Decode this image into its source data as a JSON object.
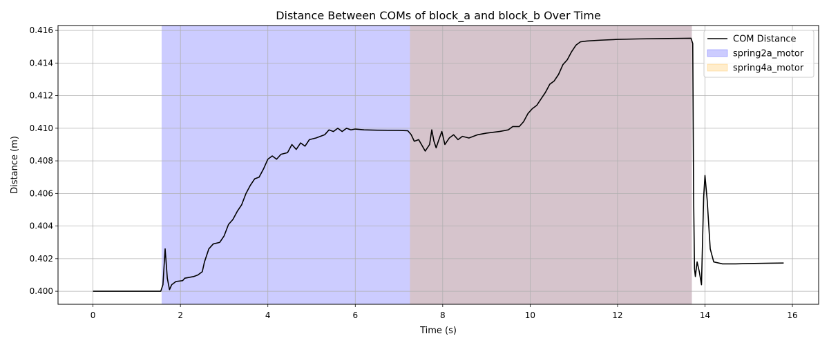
{
  "chart_data": {
    "type": "line",
    "title": "Distance Between COMs of block_a and block_b Over Time",
    "xlabel": "Time (s)",
    "ylabel": "Distance (m)",
    "xlim": [
      -0.8,
      16.6
    ],
    "ylim": [
      0.3992,
      0.4163
    ],
    "xticks": [
      0,
      2,
      4,
      6,
      8,
      10,
      12,
      14,
      16
    ],
    "xtick_labels": [
      "0",
      "2",
      "4",
      "6",
      "8",
      "10",
      "12",
      "14",
      "16"
    ],
    "yticks": [
      0.4,
      0.402,
      0.404,
      0.406,
      0.408,
      0.41,
      0.412,
      0.414,
      0.416
    ],
    "ytick_labels": [
      "0.400",
      "0.402",
      "0.404",
      "0.406",
      "0.408",
      "0.410",
      "0.412",
      "0.414",
      "0.416"
    ],
    "grid": true,
    "legend_position": "top-right",
    "spans": [
      {
        "name": "spring2a_motor",
        "x_start": 1.57,
        "x_end": 13.7,
        "color": "#0000ff",
        "alpha": 0.2
      },
      {
        "name": "spring4a_motor",
        "x_start": 7.25,
        "x_end": 13.7,
        "color": "#ffa500",
        "alpha": 0.2
      }
    ],
    "series": [
      {
        "name": "COM Distance",
        "color": "#000000",
        "points": [
          [
            0.0,
            0.4
          ],
          [
            1.0,
            0.4
          ],
          [
            1.55,
            0.4
          ],
          [
            1.6,
            0.4004
          ],
          [
            1.65,
            0.4026
          ],
          [
            1.7,
            0.4008
          ],
          [
            1.75,
            0.4001
          ],
          [
            1.8,
            0.4004
          ],
          [
            1.9,
            0.4006
          ],
          [
            2.05,
            0.40065
          ],
          [
            2.1,
            0.4008
          ],
          [
            2.3,
            0.4009
          ],
          [
            2.4,
            0.401
          ],
          [
            2.5,
            0.4012
          ],
          [
            2.55,
            0.4018
          ],
          [
            2.65,
            0.4026
          ],
          [
            2.75,
            0.4029
          ],
          [
            2.9,
            0.403
          ],
          [
            3.0,
            0.4034
          ],
          [
            3.1,
            0.4041
          ],
          [
            3.2,
            0.4044
          ],
          [
            3.3,
            0.4049
          ],
          [
            3.4,
            0.4053
          ],
          [
            3.5,
            0.406
          ],
          [
            3.6,
            0.4065
          ],
          [
            3.7,
            0.4069
          ],
          [
            3.8,
            0.407
          ],
          [
            3.9,
            0.4075
          ],
          [
            4.0,
            0.4081
          ],
          [
            4.1,
            0.4083
          ],
          [
            4.2,
            0.4081
          ],
          [
            4.3,
            0.4084
          ],
          [
            4.45,
            0.4085
          ],
          [
            4.55,
            0.409
          ],
          [
            4.65,
            0.4087
          ],
          [
            4.75,
            0.4091
          ],
          [
            4.85,
            0.4089
          ],
          [
            4.95,
            0.4093
          ],
          [
            5.1,
            0.4094
          ],
          [
            5.2,
            0.4095
          ],
          [
            5.3,
            0.4096
          ],
          [
            5.4,
            0.4099
          ],
          [
            5.5,
            0.4098
          ],
          [
            5.6,
            0.41
          ],
          [
            5.7,
            0.4098
          ],
          [
            5.8,
            0.41
          ],
          [
            5.9,
            0.4099
          ],
          [
            6.0,
            0.40995
          ],
          [
            6.2,
            0.4099
          ],
          [
            6.5,
            0.40988
          ],
          [
            7.0,
            0.40987
          ],
          [
            7.2,
            0.40985
          ],
          [
            7.28,
            0.4096
          ],
          [
            7.35,
            0.4092
          ],
          [
            7.45,
            0.4093
          ],
          [
            7.6,
            0.4086
          ],
          [
            7.7,
            0.409
          ],
          [
            7.75,
            0.4099
          ],
          [
            7.8,
            0.4092
          ],
          [
            7.85,
            0.4088
          ],
          [
            7.9,
            0.4092
          ],
          [
            7.98,
            0.4098
          ],
          [
            8.05,
            0.409
          ],
          [
            8.15,
            0.4094
          ],
          [
            8.25,
            0.4096
          ],
          [
            8.35,
            0.4093
          ],
          [
            8.45,
            0.4095
          ],
          [
            8.6,
            0.4094
          ],
          [
            8.8,
            0.4096
          ],
          [
            9.0,
            0.4097
          ],
          [
            9.3,
            0.4098
          ],
          [
            9.5,
            0.4099
          ],
          [
            9.6,
            0.4101
          ],
          [
            9.75,
            0.4101
          ],
          [
            9.85,
            0.4104
          ],
          [
            9.95,
            0.4109
          ],
          [
            10.05,
            0.4112
          ],
          [
            10.15,
            0.4114
          ],
          [
            10.25,
            0.4118
          ],
          [
            10.35,
            0.4122
          ],
          [
            10.45,
            0.4127
          ],
          [
            10.55,
            0.4129
          ],
          [
            10.65,
            0.4133
          ],
          [
            10.75,
            0.4139
          ],
          [
            10.85,
            0.4142
          ],
          [
            10.95,
            0.4147
          ],
          [
            11.05,
            0.4151
          ],
          [
            11.15,
            0.4153
          ],
          [
            11.3,
            0.41535
          ],
          [
            11.6,
            0.4154
          ],
          [
            12.0,
            0.41545
          ],
          [
            12.5,
            0.41548
          ],
          [
            13.0,
            0.4155
          ],
          [
            13.68,
            0.41552
          ],
          [
            13.72,
            0.4152
          ],
          [
            13.74,
            0.4058
          ],
          [
            13.76,
            0.4014
          ],
          [
            13.78,
            0.4009
          ],
          [
            13.82,
            0.4018
          ],
          [
            13.87,
            0.4012
          ],
          [
            13.92,
            0.4004
          ],
          [
            13.97,
            0.4058
          ],
          [
            14.0,
            0.4071
          ],
          [
            14.05,
            0.4056
          ],
          [
            14.12,
            0.4026
          ],
          [
            14.2,
            0.4018
          ],
          [
            14.4,
            0.40168
          ],
          [
            14.7,
            0.40168
          ],
          [
            15.0,
            0.4017
          ],
          [
            15.5,
            0.40172
          ],
          [
            15.8,
            0.40173
          ]
        ]
      }
    ]
  }
}
